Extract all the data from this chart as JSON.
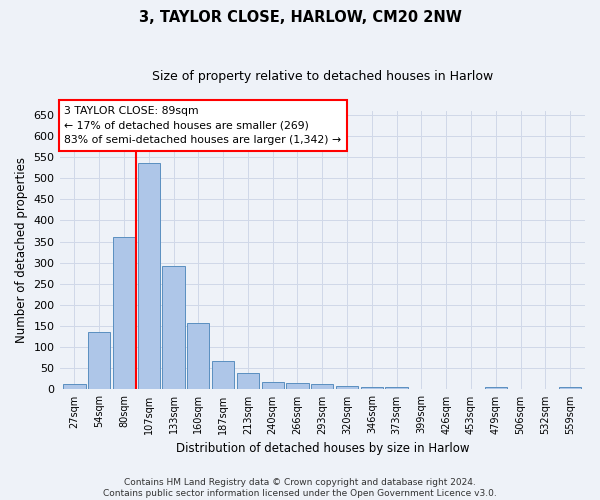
{
  "title": "3, TAYLOR CLOSE, HARLOW, CM20 2NW",
  "subtitle": "Size of property relative to detached houses in Harlow",
  "xlabel": "Distribution of detached houses by size in Harlow",
  "ylabel": "Number of detached properties",
  "categories": [
    "27sqm",
    "54sqm",
    "80sqm",
    "107sqm",
    "133sqm",
    "160sqm",
    "187sqm",
    "213sqm",
    "240sqm",
    "266sqm",
    "293sqm",
    "320sqm",
    "346sqm",
    "373sqm",
    "399sqm",
    "426sqm",
    "453sqm",
    "479sqm",
    "506sqm",
    "532sqm",
    "559sqm"
  ],
  "values": [
    12,
    137,
    360,
    535,
    291,
    158,
    68,
    40,
    18,
    15,
    13,
    9,
    5,
    5,
    0,
    0,
    0,
    5,
    0,
    0,
    5
  ],
  "bar_color": "#aec6e8",
  "bar_edge_color": "#5a8fc0",
  "grid_color": "#d0d8e8",
  "vline_index": 2.5,
  "vline_color": "red",
  "annotation_text": "3 TAYLOR CLOSE: 89sqm\n← 17% of detached houses are smaller (269)\n83% of semi-detached houses are larger (1,342) →",
  "ylim": [
    0,
    660
  ],
  "yticks": [
    0,
    50,
    100,
    150,
    200,
    250,
    300,
    350,
    400,
    450,
    500,
    550,
    600,
    650
  ],
  "footnote": "Contains HM Land Registry data © Crown copyright and database right 2024.\nContains public sector information licensed under the Open Government Licence v3.0.",
  "bg_color": "#eef2f8"
}
